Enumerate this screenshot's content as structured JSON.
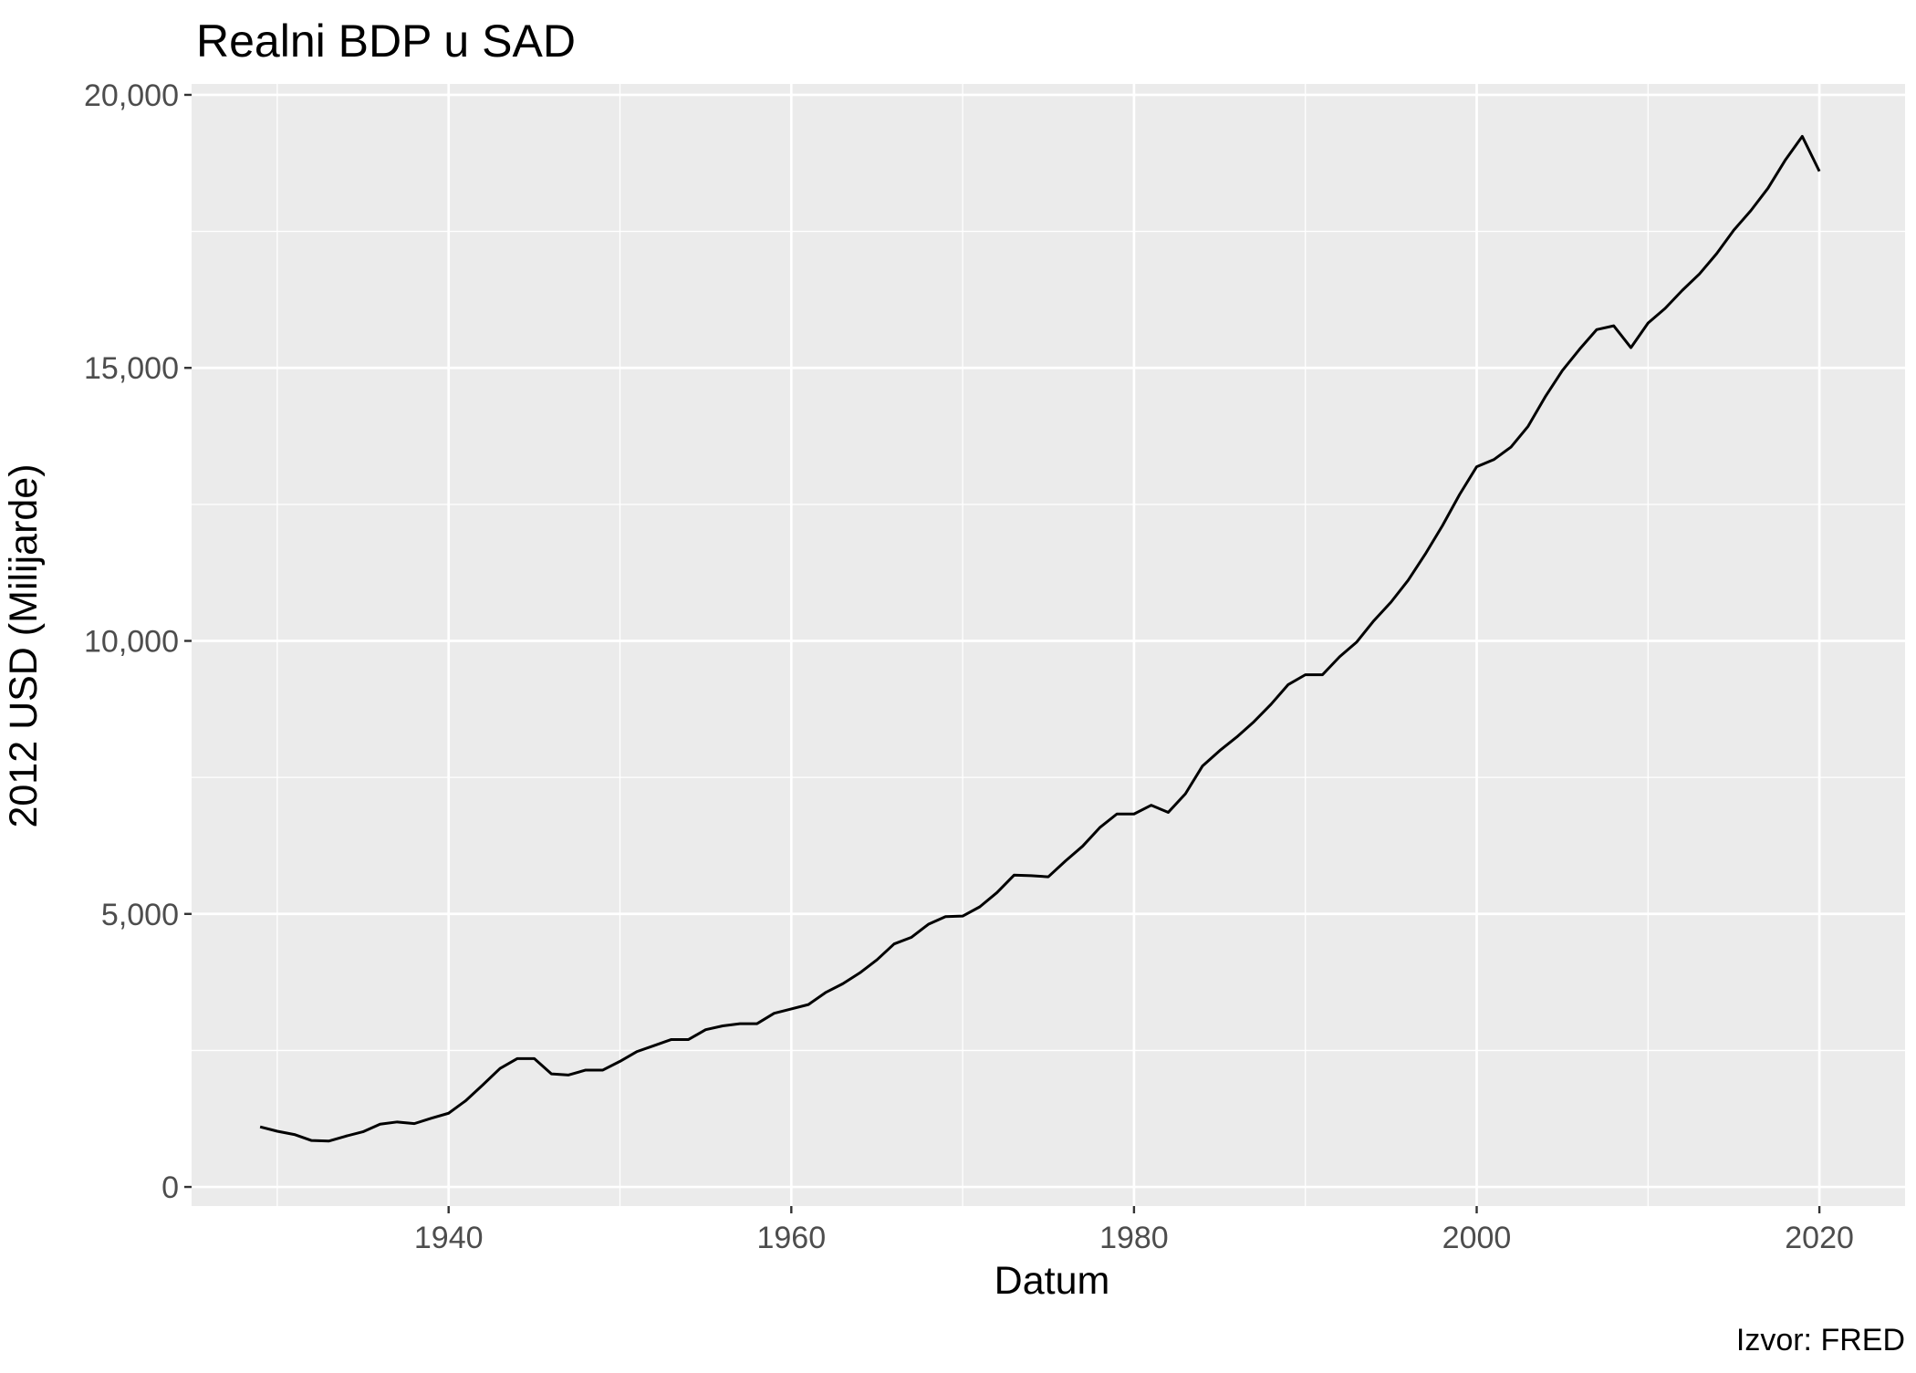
{
  "chart_data": {
    "type": "line",
    "title": "Realni BDP u SAD",
    "xlabel": "Datum",
    "ylabel": "2012 USD (Milijarde)",
    "caption": "Izvor: FRED",
    "xlim": [
      1925,
      2025
    ],
    "ylim": [
      -350,
      20200
    ],
    "x_ticks": [
      1940,
      1960,
      1980,
      2000,
      2020
    ],
    "x_tick_labels": [
      "1940",
      "1960",
      "1980",
      "2000",
      "2020"
    ],
    "x_minor_ticks": [
      1930,
      1950,
      1970,
      1990,
      2010
    ],
    "y_ticks": [
      0,
      5000,
      10000,
      15000,
      20000
    ],
    "y_tick_labels": [
      "0",
      "5,000",
      "10,000",
      "15,000",
      "20,000"
    ],
    "y_minor_ticks": [
      2500,
      7500,
      12500,
      17500
    ],
    "grid": true,
    "legend": "none",
    "colors": {
      "panel": "#ebebeb",
      "grid": "#ffffff",
      "line": "#000000",
      "tick_text": "#4d4d4d",
      "tick_mark": "#333333"
    },
    "series": [
      {
        "x": [
          1929,
          1930,
          1931,
          1932,
          1933,
          1934,
          1935,
          1936,
          1937,
          1938,
          1939,
          1940,
          1941,
          1942,
          1943,
          1944,
          1945,
          1946,
          1947,
          1948,
          1949,
          1950,
          1951,
          1952,
          1953,
          1954,
          1955,
          1956,
          1957,
          1958,
          1959,
          1960,
          1961,
          1962,
          1963,
          1964,
          1965,
          1966,
          1967,
          1968,
          1969,
          1970,
          1971,
          1972,
          1973,
          1974,
          1975,
          1976,
          1977,
          1978,
          1979,
          1980,
          1981,
          1982,
          1983,
          1984,
          1985,
          1986,
          1987,
          1988,
          1989,
          1990,
          1991,
          1992,
          1993,
          1994,
          1995,
          1996,
          1997,
          1998,
          1999,
          2000,
          2001,
          2002,
          2003,
          2004,
          2005,
          2006,
          2007,
          2008,
          2009,
          2010,
          2011,
          2012,
          2013,
          2014,
          2015,
          2016,
          2017,
          2018,
          2019,
          2020
        ],
        "values": [
          1100,
          1020,
          960,
          850,
          840,
          930,
          1010,
          1150,
          1190,
          1160,
          1260,
          1350,
          1580,
          1870,
          2170,
          2350,
          2350,
          2070,
          2050,
          2140,
          2140,
          2300,
          2480,
          2590,
          2700,
          2700,
          2880,
          2950,
          2990,
          2990,
          3180,
          3260,
          3340,
          3560,
          3720,
          3920,
          4160,
          4450,
          4570,
          4810,
          4950,
          4960,
          5130,
          5390,
          5710,
          5700,
          5680,
          5970,
          6240,
          6580,
          6830,
          6830,
          6990,
          6860,
          7200,
          7710,
          7990,
          8240,
          8520,
          8840,
          9200,
          9380,
          9380,
          9710,
          9980,
          10370,
          10710,
          11110,
          11590,
          12110,
          12680,
          13190,
          13320,
          13550,
          13930,
          14470,
          14950,
          15340,
          15700,
          15770,
          15370,
          15820,
          16090,
          16420,
          16720,
          17090,
          17520,
          17880,
          18290,
          18800,
          19240,
          18600
        ]
      }
    ]
  }
}
